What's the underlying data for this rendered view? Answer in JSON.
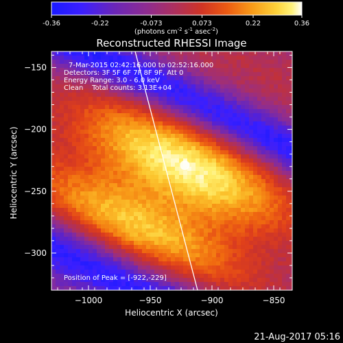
{
  "colorbar": {
    "min": -0.36,
    "max": 0.36,
    "ticks": [
      "-0.36",
      "-0.22",
      "-0.073",
      "0.073",
      "0.22",
      "0.36"
    ],
    "tick_values": [
      -0.36,
      -0.22,
      -0.073,
      0.073,
      0.22,
      0.36
    ],
    "unit_label_prefix": "(photons cm",
    "unit_label_exp1": "-2",
    "unit_label_mid": " s",
    "unit_label_exp2": "-1",
    "unit_label_mid2": " asec",
    "unit_label_exp3": "-2",
    "unit_label_suffix": ")",
    "palette_name": "rhessi-blue-purple-red-yellow-white",
    "palette": [
      "#1a1aff",
      "#3b1fff",
      "#5a22cc",
      "#7a2aa8",
      "#982e84",
      "#b0305a",
      "#c8322e",
      "#e0401a",
      "#f06a10",
      "#f89a18",
      "#fcc830",
      "#fff070",
      "#ffffff"
    ]
  },
  "chart_data": {
    "type": "heatmap",
    "title": "Reconstructed RHESSI Image",
    "xlabel": "Heliocentric X (arcsec)",
    "ylabel": "Heliocentric Y (arcsec)",
    "xlim": [
      -1030,
      -835
    ],
    "ylim": [
      -330,
      -137
    ],
    "x_ticks": [
      -1000,
      -950,
      -900,
      -850
    ],
    "y_ticks": [
      -150,
      -200,
      -250,
      -300
    ],
    "x_tick_labels": [
      "−1000",
      "−950",
      "−900",
      "−850"
    ],
    "y_tick_labels": [
      "−150",
      "−200",
      "−250",
      "−300"
    ],
    "grid": false,
    "peak": [
      -922,
      -229
    ],
    "annotations": {
      "time_range": "7-Mar-2015 02:42:16.000 to 02:52:16.000",
      "detectors": "Detectors: 3F 5F 6F 7F 8F 9F, Att 0",
      "energy": "Energy Range: 3.0 - 6.0 keV",
      "clean": "Clean    Total counts: 3.13E+04",
      "peak_position": "Position of Peak = [-922,-229]"
    }
  },
  "footer": {
    "timestamp": "21-Aug-2017 05:16"
  }
}
